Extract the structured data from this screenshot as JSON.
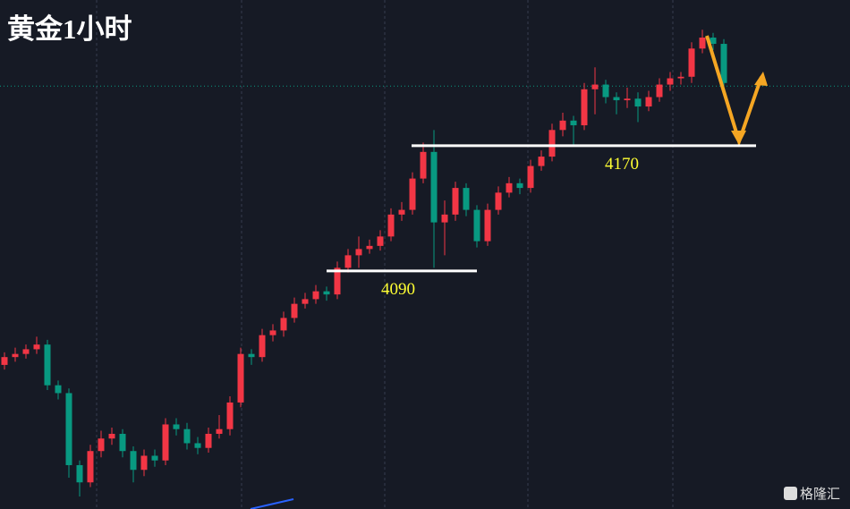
{
  "chart_data": {
    "type": "candlestick",
    "title": "黄金1小时",
    "ylim": [
      3938,
      4263
    ],
    "up_color": "#f23645",
    "down_color": "#089981",
    "open": [
      4030,
      4035,
      4037,
      4040,
      4043,
      4017,
      4012,
      3966,
      3955,
      3975,
      3983,
      3986,
      3975,
      3963,
      3972,
      3969,
      3992,
      3989,
      3980,
      3977,
      3986,
      3989,
      4006,
      4037,
      4035,
      4049,
      4052,
      4060,
      4069,
      4072,
      4077,
      4075,
      4092,
      4100,
      4104,
      4106,
      4112,
      4126,
      4129,
      4149,
      4166,
      4121,
      4126,
      4143,
      4129,
      4109,
      4129,
      4140,
      4146,
      4143,
      4157,
      4163,
      4180,
      4186,
      4183,
      4206,
      4209,
      4201,
      4199,
      4200,
      4195,
      4201,
      4209,
      4213,
      4214,
      4232,
      4239,
      4235
    ],
    "high": [
      4038,
      4041,
      4043,
      4048,
      4046,
      4020,
      4015,
      3969,
      3979,
      3988,
      3990,
      3989,
      3978,
      3976,
      3976,
      3996,
      3996,
      3993,
      3984,
      3990,
      3998,
      4010,
      4041,
      4040,
      4053,
      4056,
      4064,
      4073,
      4076,
      4081,
      4080,
      4096,
      4104,
      4112,
      4110,
      4116,
      4130,
      4134,
      4153,
      4172,
      4180,
      4135,
      4147,
      4146,
      4132,
      4133,
      4144,
      4150,
      4149,
      4161,
      4167,
      4184,
      4191,
      4189,
      4210,
      4220,
      4212,
      4204,
      4207,
      4204,
      4205,
      4213,
      4217,
      4217,
      4236,
      4244,
      4242,
      4238
    ],
    "low": [
      4027,
      4032,
      4034,
      4037,
      4014,
      4008,
      3958,
      3946,
      3952,
      3971,
      3979,
      3971,
      3955,
      3959,
      3965,
      3966,
      3985,
      3976,
      3973,
      3974,
      3983,
      3985,
      4003,
      4030,
      4032,
      4045,
      4048,
      4057,
      4066,
      4069,
      4071,
      4072,
      4089,
      4092,
      4101,
      4103,
      4109,
      4122,
      4126,
      4146,
      4092,
      4100,
      4122,
      4125,
      4105,
      4106,
      4126,
      4137,
      4139,
      4140,
      4154,
      4160,
      4176,
      4170,
      4180,
      4190,
      4197,
      4190,
      4194,
      4185,
      4192,
      4198,
      4205,
      4209,
      4210,
      4229,
      4231,
      4205
    ],
    "close": [
      4035,
      4037,
      4040,
      4043,
      4017,
      4012,
      3966,
      3955,
      3975,
      3983,
      3986,
      3975,
      3963,
      3972,
      3969,
      3992,
      3989,
      3980,
      3977,
      3986,
      3989,
      4006,
      4037,
      4035,
      4049,
      4052,
      4060,
      4069,
      4072,
      4077,
      4075,
      4092,
      4100,
      4104,
      4106,
      4112,
      4126,
      4129,
      4149,
      4166,
      4121,
      4126,
      4143,
      4129,
      4109,
      4129,
      4140,
      4146,
      4143,
      4157,
      4163,
      4180,
      4186,
      4183,
      4206,
      4209,
      4201,
      4199,
      4200,
      4195,
      4201,
      4209,
      4213,
      4214,
      4232,
      4239,
      4235,
      4210
    ],
    "price_line": 4208,
    "levels": [
      {
        "value": 4090,
        "label": "4090"
      },
      {
        "value": 4170,
        "label": "4170"
      }
    ],
    "watermark": "格隆汇"
  }
}
